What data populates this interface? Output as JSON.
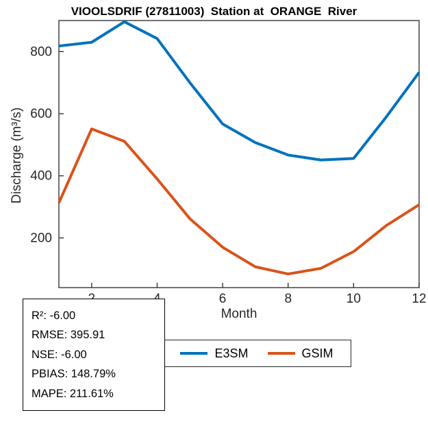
{
  "chart_data": {
    "type": "line",
    "title": "VIOOLSDRIF (27811003)  Station at  ORANGE  River",
    "xlabel": "Month",
    "ylabel": "Discharge (m³/s)",
    "x": [
      1,
      2,
      3,
      4,
      5,
      6,
      7,
      8,
      9,
      10,
      11,
      12
    ],
    "series": [
      {
        "name": "E3SM",
        "color": "#0072BD",
        "values": [
          818,
          830,
          896,
          842,
          700,
          567,
          507,
          467,
          451,
          456,
          590,
          733
        ]
      },
      {
        "name": "GSIM",
        "color": "#D95319",
        "values": [
          313,
          551,
          511,
          390,
          262,
          170,
          107,
          84,
          102,
          156,
          240,
          307
        ]
      }
    ],
    "xlim": [
      1,
      12
    ],
    "ylim": [
      40,
      900
    ],
    "xticks": [
      2,
      4,
      6,
      8,
      10,
      12
    ],
    "yticks": [
      200,
      400,
      600,
      800
    ],
    "grid": false,
    "legend_position": "bottom",
    "axis_color": "#262626"
  },
  "legend": {
    "items": [
      {
        "label": "E3SM",
        "color": "#0072BD"
      },
      {
        "label": "GSIM",
        "color": "#D95319"
      }
    ]
  },
  "stats": {
    "lines": [
      "R²: -6.00",
      "RMSE: 395.91",
      "NSE: -6.00",
      "PBIAS: 148.79%",
      "MAPE: 211.61%"
    ]
  }
}
